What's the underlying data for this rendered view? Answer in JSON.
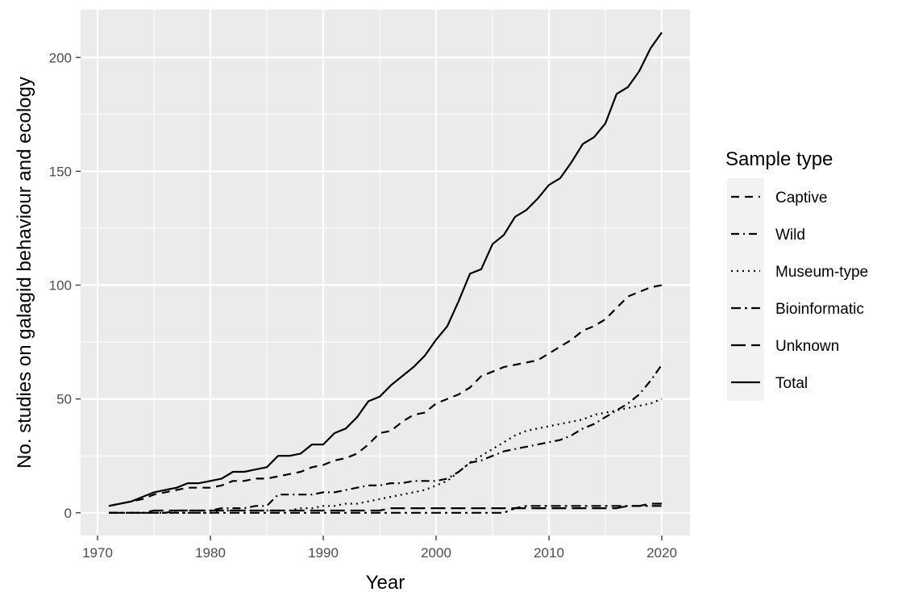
{
  "chart_data": {
    "type": "line",
    "xlabel": "Year",
    "ylabel": "No. studies on galagid behaviour and ecology",
    "xlim": [
      1968.5,
      2022.5
    ],
    "ylim": [
      -10,
      221
    ],
    "xticks": [
      1970,
      1980,
      1990,
      2000,
      2010,
      2020
    ],
    "yticks": [
      0,
      50,
      100,
      150,
      200
    ],
    "grid": true,
    "legend": {
      "title": "Sample type",
      "position": "right"
    },
    "x": [
      1971,
      1972,
      1973,
      1974,
      1975,
      1976,
      1977,
      1978,
      1979,
      1980,
      1981,
      1982,
      1983,
      1984,
      1985,
      1986,
      1987,
      1988,
      1989,
      1990,
      1991,
      1992,
      1993,
      1994,
      1995,
      1996,
      1997,
      1998,
      1999,
      2000,
      2001,
      2002,
      2003,
      2004,
      2005,
      2006,
      2007,
      2008,
      2009,
      2010,
      2011,
      2012,
      2013,
      2014,
      2015,
      2016,
      2017,
      2018,
      2019,
      2020
    ],
    "series": [
      {
        "name": "Captive",
        "dash": "10,7",
        "values": [
          3,
          4,
          5,
          6,
          8,
          9,
          10,
          11,
          11,
          11,
          12,
          14,
          14,
          15,
          15,
          16,
          17,
          18,
          20,
          21,
          23,
          24,
          26,
          30,
          35,
          36,
          40,
          43,
          44,
          48,
          50,
          52,
          55,
          60,
          62,
          64,
          65,
          66,
          67,
          70,
          73,
          76,
          80,
          82,
          85,
          90,
          95,
          97,
          99,
          100
        ]
      },
      {
        "name": "Wild",
        "dash": "10,5,2,5",
        "values": [
          0,
          0,
          0,
          0,
          0,
          0,
          1,
          1,
          1,
          1,
          2,
          2,
          2,
          3,
          3,
          8,
          8,
          8,
          8,
          9,
          9,
          10,
          11,
          12,
          12,
          13,
          13,
          14,
          14,
          14,
          15,
          18,
          22,
          23,
          25,
          27,
          28,
          29,
          30,
          31,
          32,
          34,
          37,
          39,
          42,
          45,
          48,
          52,
          58,
          65
        ]
      },
      {
        "name": "Museum-type",
        "dash": "2,5",
        "values": [
          0,
          0,
          0,
          0,
          0,
          0,
          0,
          0,
          0,
          0,
          1,
          1,
          1,
          1,
          1,
          1,
          1,
          2,
          2,
          3,
          3,
          4,
          4,
          5,
          6,
          7,
          8,
          9,
          10,
          12,
          14,
          18,
          22,
          25,
          28,
          31,
          34,
          36,
          37,
          38,
          39,
          40,
          41,
          43,
          44,
          45,
          46,
          47,
          48,
          50
        ]
      },
      {
        "name": "Bioinformatic",
        "dash": "12,5,3,5",
        "values": [
          0,
          0,
          0,
          0,
          0,
          0,
          0,
          0,
          0,
          0,
          0,
          0,
          0,
          0,
          0,
          0,
          0,
          0,
          0,
          0,
          0,
          0,
          0,
          0,
          0,
          0,
          0,
          0,
          0,
          0,
          0,
          0,
          0,
          0,
          0,
          0,
          2,
          3,
          3,
          3,
          3,
          3,
          3,
          3,
          3,
          3,
          3,
          3,
          3,
          3
        ]
      },
      {
        "name": "Unknown",
        "dash": "18,7",
        "values": [
          0,
          0,
          0,
          0,
          1,
          1,
          1,
          1,
          1,
          1,
          1,
          1,
          1,
          1,
          1,
          1,
          1,
          1,
          1,
          1,
          1,
          1,
          1,
          1,
          1,
          2,
          2,
          2,
          2,
          2,
          2,
          2,
          2,
          2,
          2,
          2,
          2,
          2,
          2,
          2,
          2,
          2,
          2,
          2,
          2,
          2,
          3,
          3,
          4,
          4
        ]
      },
      {
        "name": "Total",
        "dash": "",
        "values": [
          3,
          4,
          5,
          7,
          9,
          10,
          11,
          13,
          13,
          14,
          15,
          18,
          18,
          19,
          20,
          25,
          25,
          26,
          30,
          30,
          35,
          37,
          42,
          49,
          51,
          56,
          60,
          64,
          69,
          76,
          82,
          93,
          105,
          107,
          118,
          122,
          130,
          133,
          138,
          144,
          147,
          154,
          162,
          165,
          171,
          184,
          187,
          194,
          204,
          211
        ]
      }
    ]
  }
}
